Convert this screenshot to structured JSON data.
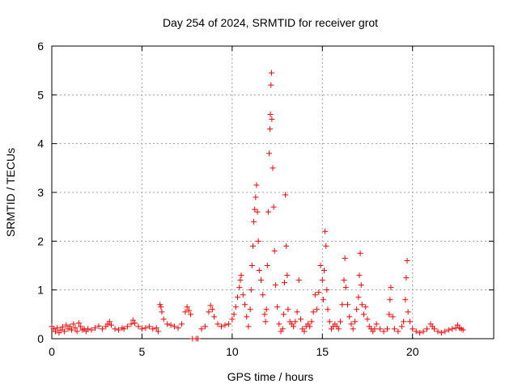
{
  "chart_data": {
    "type": "scatter",
    "title": "Day 254 of 2024, SRMTID for receiver grot",
    "xlabel": "GPS time / hours",
    "ylabel": "SRMTID / TECUs",
    "xlim": [
      0,
      24.5
    ],
    "ylim": [
      0,
      6
    ],
    "xticks": [
      0,
      5,
      10,
      15,
      20
    ],
    "yticks": [
      0,
      1,
      2,
      3,
      4,
      5,
      6
    ],
    "x_tick_labels": [
      "0",
      "5",
      "10",
      "15",
      "20"
    ],
    "y_tick_labels": [
      "0",
      "1",
      "2",
      "3",
      "4",
      "5",
      "6"
    ],
    "grid": true,
    "marker": "+",
    "series_color": "#ff0000",
    "series": [
      {
        "name": "SRMTID",
        "points": [
          [
            0.0,
            0.25
          ],
          [
            0.1,
            0.2
          ],
          [
            0.2,
            0.15
          ],
          [
            0.3,
            0.22
          ],
          [
            0.4,
            0.12
          ],
          [
            0.5,
            0.18
          ],
          [
            0.6,
            0.24
          ],
          [
            0.7,
            0.15
          ],
          [
            0.8,
            0.28
          ],
          [
            0.9,
            0.2
          ],
          [
            1.0,
            0.25
          ],
          [
            1.1,
            0.18
          ],
          [
            1.2,
            0.3
          ],
          [
            1.3,
            0.22
          ],
          [
            1.4,
            0.15
          ],
          [
            1.5,
            0.32
          ],
          [
            1.6,
            0.25
          ],
          [
            1.7,
            0.18
          ],
          [
            1.8,
            0.2
          ],
          [
            1.9,
            0.15
          ],
          [
            2.0,
            0.2
          ],
          [
            2.2,
            0.18
          ],
          [
            2.4,
            0.22
          ],
          [
            2.6,
            0.26
          ],
          [
            2.8,
            0.2
          ],
          [
            3.0,
            0.25
          ],
          [
            3.1,
            0.3
          ],
          [
            3.2,
            0.35
          ],
          [
            3.3,
            0.28
          ],
          [
            3.5,
            0.2
          ],
          [
            3.7,
            0.18
          ],
          [
            3.9,
            0.22
          ],
          [
            4.0,
            0.2
          ],
          [
            4.2,
            0.25
          ],
          [
            4.4,
            0.3
          ],
          [
            4.5,
            0.38
          ],
          [
            4.6,
            0.32
          ],
          [
            4.8,
            0.25
          ],
          [
            5.0,
            0.2
          ],
          [
            5.2,
            0.22
          ],
          [
            5.4,
            0.25
          ],
          [
            5.6,
            0.2
          ],
          [
            5.8,
            0.22
          ],
          [
            5.9,
            0.15
          ],
          [
            6.0,
            0.7
          ],
          [
            6.05,
            0.65
          ],
          [
            6.1,
            0.55
          ],
          [
            6.2,
            0.4
          ],
          [
            6.4,
            0.3
          ],
          [
            6.6,
            0.28
          ],
          [
            6.8,
            0.25
          ],
          [
            7.0,
            0.22
          ],
          [
            7.2,
            0.3
          ],
          [
            7.4,
            0.55
          ],
          [
            7.5,
            0.65
          ],
          [
            7.6,
            0.58
          ],
          [
            7.7,
            0.5
          ],
          [
            7.8,
            0.0
          ],
          [
            8.0,
            0.0
          ],
          [
            8.1,
            0.0
          ],
          [
            8.3,
            0.2
          ],
          [
            8.5,
            0.25
          ],
          [
            8.7,
            0.55
          ],
          [
            8.8,
            0.68
          ],
          [
            8.9,
            0.6
          ],
          [
            9.0,
            0.45
          ],
          [
            9.2,
            0.3
          ],
          [
            9.4,
            0.25
          ],
          [
            9.6,
            0.28
          ],
          [
            9.8,
            0.3
          ],
          [
            10.0,
            0.4
          ],
          [
            10.1,
            0.5
          ],
          [
            10.2,
            0.65
          ],
          [
            10.3,
            0.85
          ],
          [
            10.4,
            1.05
          ],
          [
            10.45,
            1.2
          ],
          [
            10.5,
            1.3
          ],
          [
            10.6,
            0.9
          ],
          [
            10.7,
            0.7
          ],
          [
            10.8,
            0.45
          ],
          [
            10.9,
            0.25
          ],
          [
            11.0,
            0.6
          ],
          [
            11.05,
            1.0
          ],
          [
            11.1,
            1.5
          ],
          [
            11.15,
            1.9
          ],
          [
            11.2,
            2.4
          ],
          [
            11.25,
            2.65
          ],
          [
            11.3,
            2.9
          ],
          [
            11.35,
            3.15
          ],
          [
            11.4,
            2.6
          ],
          [
            11.45,
            2.0
          ],
          [
            11.5,
            1.4
          ],
          [
            11.6,
            1.2
          ],
          [
            11.7,
            0.9
          ],
          [
            11.8,
            0.5
          ],
          [
            11.85,
            0.35
          ],
          [
            11.9,
            0.6
          ],
          [
            11.95,
            1.5
          ],
          [
            12.0,
            2.6
          ],
          [
            12.05,
            3.8
          ],
          [
            12.1,
            4.3
          ],
          [
            12.12,
            4.6
          ],
          [
            12.15,
            5.2
          ],
          [
            12.18,
            5.45
          ],
          [
            12.2,
            4.5
          ],
          [
            12.25,
            3.5
          ],
          [
            12.3,
            2.7
          ],
          [
            12.35,
            1.8
          ],
          [
            12.4,
            1.1
          ],
          [
            12.5,
            0.65
          ],
          [
            12.6,
            0.3
          ],
          [
            12.7,
            0.15
          ],
          [
            12.8,
            0.2
          ],
          [
            12.85,
            0.5
          ],
          [
            12.9,
            1.15
          ],
          [
            12.95,
            2.95
          ],
          [
            13.0,
            1.9
          ],
          [
            13.05,
            1.3
          ],
          [
            13.1,
            0.6
          ],
          [
            13.2,
            0.35
          ],
          [
            13.3,
            0.3
          ],
          [
            13.4,
            0.25
          ],
          [
            13.5,
            0.35
          ],
          [
            13.6,
            0.55
          ],
          [
            13.7,
            1.2
          ],
          [
            13.8,
            0.4
          ],
          [
            13.9,
            0.2
          ],
          [
            14.0,
            0.15
          ],
          [
            14.1,
            0.25
          ],
          [
            14.2,
            0.3
          ],
          [
            14.3,
            0.25
          ],
          [
            14.4,
            0.35
          ],
          [
            14.5,
            0.55
          ],
          [
            14.6,
            0.9
          ],
          [
            14.7,
            0.6
          ],
          [
            14.8,
            0.95
          ],
          [
            14.9,
            1.5
          ],
          [
            15.0,
            1.2
          ],
          [
            15.05,
            0.8
          ],
          [
            15.1,
            1.4
          ],
          [
            15.15,
            2.2
          ],
          [
            15.2,
            1.9
          ],
          [
            15.25,
            1.0
          ],
          [
            15.3,
            0.6
          ],
          [
            15.4,
            0.35
          ],
          [
            15.5,
            0.2
          ],
          [
            15.6,
            0.25
          ],
          [
            15.7,
            0.3
          ],
          [
            15.8,
            0.25
          ],
          [
            15.9,
            0.2
          ],
          [
            16.0,
            0.35
          ],
          [
            16.1,
            0.7
          ],
          [
            16.2,
            1.2
          ],
          [
            16.25,
            1.65
          ],
          [
            16.3,
            1.05
          ],
          [
            16.4,
            0.7
          ],
          [
            16.5,
            0.45
          ],
          [
            16.6,
            0.3
          ],
          [
            16.7,
            0.2
          ],
          [
            16.8,
            0.35
          ],
          [
            16.9,
            0.6
          ],
          [
            17.0,
            0.85
          ],
          [
            17.05,
            1.3
          ],
          [
            17.1,
            1.75
          ],
          [
            17.15,
            1.1
          ],
          [
            17.2,
            0.7
          ],
          [
            17.3,
            0.5
          ],
          [
            17.4,
            0.65
          ],
          [
            17.5,
            0.4
          ],
          [
            17.6,
            0.25
          ],
          [
            17.7,
            0.2
          ],
          [
            17.8,
            0.15
          ],
          [
            17.9,
            0.2
          ],
          [
            18.0,
            0.3
          ],
          [
            18.2,
            0.2
          ],
          [
            18.4,
            0.15
          ],
          [
            18.6,
            0.2
          ],
          [
            18.7,
            0.5
          ],
          [
            18.75,
            0.8
          ],
          [
            18.8,
            1.05
          ],
          [
            18.9,
            0.45
          ],
          [
            19.0,
            0.2
          ],
          [
            19.2,
            0.15
          ],
          [
            19.4,
            0.25
          ],
          [
            19.5,
            0.35
          ],
          [
            19.6,
            0.8
          ],
          [
            19.65,
            1.25
          ],
          [
            19.7,
            1.6
          ],
          [
            19.75,
            0.55
          ],
          [
            19.85,
            0.35
          ],
          [
            20.0,
            0.2
          ],
          [
            20.2,
            0.15
          ],
          [
            20.4,
            0.12
          ],
          [
            20.6,
            0.15
          ],
          [
            20.8,
            0.2
          ],
          [
            21.0,
            0.3
          ],
          [
            21.1,
            0.25
          ],
          [
            21.2,
            0.2
          ],
          [
            21.4,
            0.15
          ],
          [
            21.6,
            0.12
          ],
          [
            21.8,
            0.15
          ],
          [
            22.0,
            0.18
          ],
          [
            22.2,
            0.2
          ],
          [
            22.4,
            0.22
          ],
          [
            22.5,
            0.28
          ],
          [
            22.6,
            0.22
          ],
          [
            22.7,
            0.2
          ],
          [
            22.8,
            0.18
          ]
        ]
      }
    ]
  }
}
